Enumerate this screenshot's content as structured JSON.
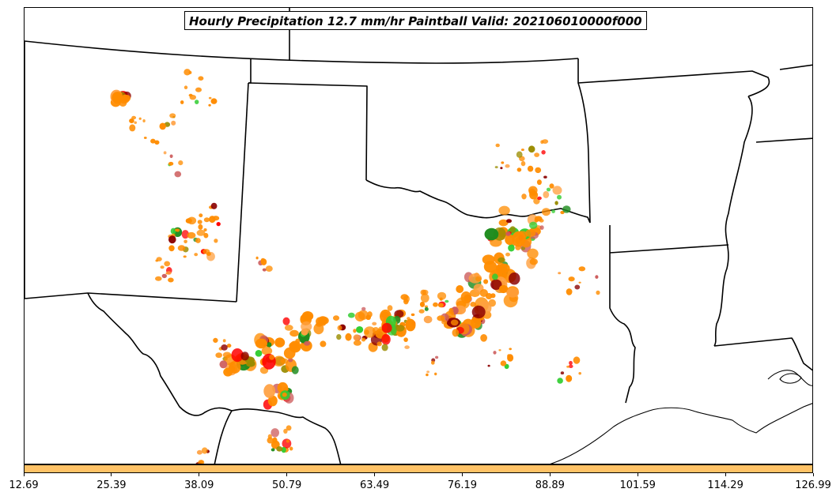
{
  "title": "Hourly Precipitation 12.7 mm/hr Paintball Valid: 202106010000f000",
  "colorbar": {
    "color": "#ffc266",
    "tick_labels": [
      "12.69",
      "25.39",
      "38.09",
      "50.79",
      "63.49",
      "76.19",
      "88.89",
      "101.59",
      "114.29",
      "126.99"
    ]
  },
  "map": {
    "region": "Southern Plains / Texas",
    "boundaries": "state borders and coastline",
    "paintball_colors": [
      "#ff8c00",
      "#ff0000",
      "#8b0000",
      "#1e8c1e",
      "#32cd32",
      "#9a8c00",
      "#cd5c5c",
      "#ffa040"
    ]
  }
}
